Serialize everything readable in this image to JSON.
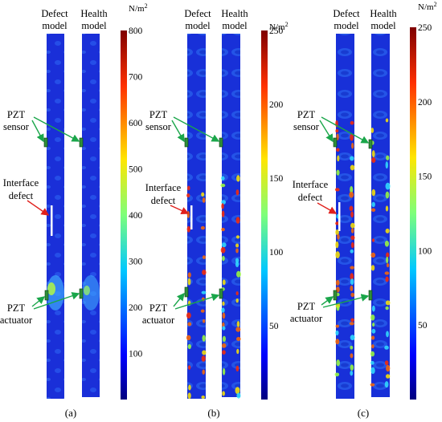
{
  "labels": {
    "defect_model_l1": "Defect",
    "defect_model_l2": "model",
    "health_model_l1": "Health",
    "health_model_l2": "model",
    "pzt_sensor_l1": "PZT",
    "pzt_sensor_l2": "sensor",
    "interface_defect_l1": "Interface",
    "interface_defect_l2": "defect",
    "pzt_actuator_l1": "PZT",
    "pzt_actuator_l2": "actuator"
  },
  "unit": "N/m",
  "unit_sup": "2",
  "panels": [
    {
      "caption": "(a)",
      "colorbar_ticks": [
        "100",
        "200",
        "300",
        "400",
        "500",
        "600",
        "700",
        "800"
      ],
      "colorbar_range": [
        0,
        800
      ]
    },
    {
      "caption": "(b)",
      "colorbar_ticks": [
        "50",
        "100",
        "150",
        "200",
        "250"
      ],
      "colorbar_range": [
        0,
        250
      ]
    },
    {
      "caption": "(c)",
      "colorbar_ticks": [
        "50",
        "100",
        "150",
        "200",
        "250"
      ],
      "colorbar_range": [
        0,
        250
      ]
    }
  ],
  "colors": {
    "beam_base": "#1c2fd6",
    "arrow_green": "#1aa64a",
    "arrow_red": "#e0201c",
    "pzt_fill": "#2f8f3a",
    "defect_white": "#ffffff"
  }
}
